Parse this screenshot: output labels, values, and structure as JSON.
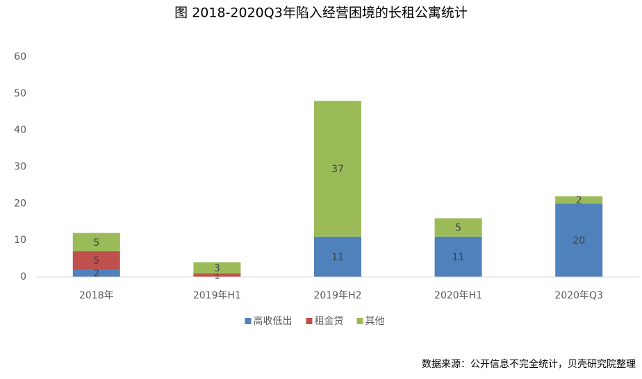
{
  "chart_data": {
    "type": "stacked_bar",
    "title": "图 2018-2020Q3年陷入经营困境的长租公寓统计",
    "categories": [
      "2018年",
      "2019年H1",
      "2019年H2",
      "2020年H1",
      "2020年Q3"
    ],
    "series": [
      {
        "name": "高收低出",
        "color": "#4f81bd",
        "values": [
          2,
          null,
          11,
          11,
          20
        ]
      },
      {
        "name": "租金贷",
        "color": "#c0504d",
        "values": [
          5,
          1,
          null,
          null,
          null
        ]
      },
      {
        "name": "其他",
        "color": "#9bbb59",
        "values": [
          5,
          3,
          37,
          5,
          2
        ]
      }
    ],
    "ylim": [
      0,
      60
    ],
    "yticks": [
      0,
      10,
      20,
      30,
      40,
      50,
      60
    ],
    "grid": false,
    "legend": "bottom",
    "source": "数据来源：公开信息不完全统计，贝壳研究院整理"
  }
}
